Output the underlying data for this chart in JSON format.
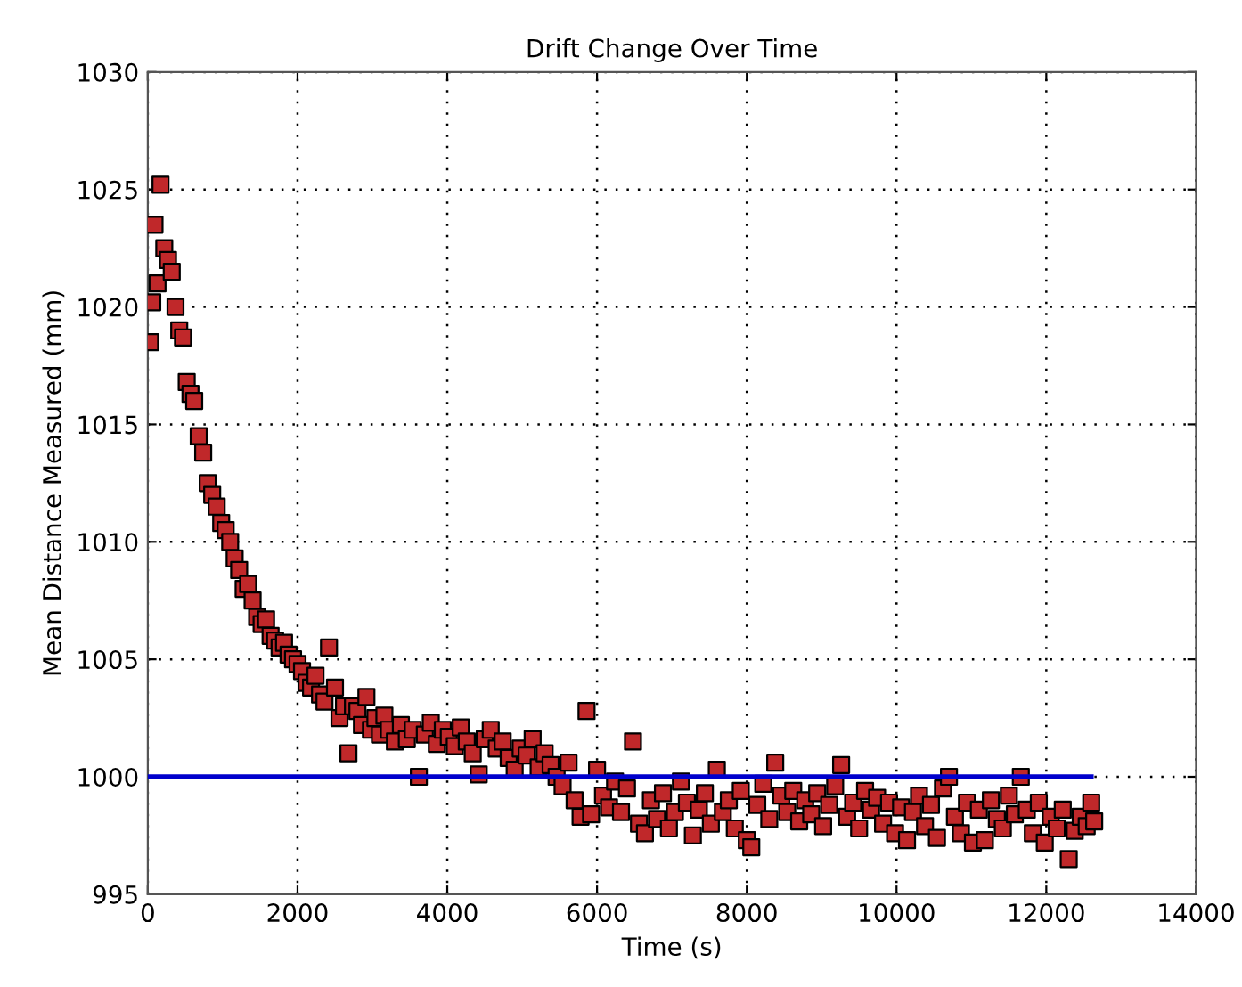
{
  "chart_data": {
    "type": "scatter",
    "title": "Drift Change Over Time",
    "xlabel": "Time (s)",
    "ylabel": "Mean Distance Measured (mm)",
    "xlim": [
      0,
      14000
    ],
    "xticks": [
      0,
      2000,
      4000,
      6000,
      8000,
      10000,
      12000,
      14000
    ],
    "ylim": [
      995,
      1030
    ],
    "yticks": [
      995,
      1000,
      1005,
      1010,
      1015,
      1020,
      1025,
      1030
    ],
    "grid": true,
    "legend": false,
    "series": [
      {
        "color": "#c0282a",
        "marker": "square",
        "x": [
          30,
          60,
          90,
          130,
          170,
          220,
          270,
          320,
          370,
          420,
          470,
          520,
          570,
          620,
          680,
          740,
          800,
          860,
          920,
          980,
          1040,
          1100,
          1160,
          1220,
          1280,
          1340,
          1400,
          1460,
          1520,
          1580,
          1640,
          1700,
          1760,
          1820,
          1880,
          1940,
          2000,
          2060,
          2120,
          2180,
          2240,
          2300,
          2360,
          2420,
          2500,
          2560,
          2620,
          2680,
          2740,
          2800,
          2860,
          2920,
          2980,
          3040,
          3100,
          3160,
          3220,
          3300,
          3380,
          3460,
          3540,
          3620,
          3700,
          3780,
          3860,
          3940,
          4020,
          4100,
          4180,
          4260,
          4340,
          4420,
          4500,
          4580,
          4660,
          4740,
          4820,
          4900,
          4980,
          5060,
          5140,
          5220,
          5300,
          5380,
          5460,
          5540,
          5620,
          5700,
          5780,
          5860,
          5920,
          6000,
          6080,
          6160,
          6240,
          6320,
          6400,
          6480,
          6560,
          6640,
          6720,
          6800,
          6880,
          6960,
          7040,
          7120,
          7200,
          7280,
          7360,
          7440,
          7520,
          7600,
          7680,
          7760,
          7840,
          7920,
          8000,
          8060,
          8140,
          8220,
          8300,
          8380,
          8460,
          8540,
          8620,
          8700,
          8780,
          8860,
          8940,
          9020,
          9100,
          9180,
          9260,
          9340,
          9420,
          9500,
          9580,
          9660,
          9740,
          9820,
          9900,
          9980,
          10060,
          10140,
          10220,
          10300,
          10380,
          10460,
          10540,
          10620,
          10700,
          10780,
          10860,
          10940,
          11020,
          11100,
          11180,
          11260,
          11340,
          11420,
          11500,
          11580,
          11660,
          11740,
          11820,
          11900,
          11980,
          12060,
          12140,
          12220,
          12300,
          12380,
          12460,
          12540,
          12600,
          12640
        ],
        "values": [
          1018.5,
          1020.2,
          1023.5,
          1021,
          1025.2,
          1022.5,
          1022,
          1021.5,
          1020,
          1019,
          1018.7,
          1016.8,
          1016.3,
          1016,
          1014.5,
          1013.8,
          1012.5,
          1012,
          1011.5,
          1010.8,
          1010.5,
          1010,
          1009.3,
          1008.8,
          1008,
          1008.2,
          1007.5,
          1006.8,
          1006.5,
          1006.7,
          1006,
          1005.8,
          1005.5,
          1005.7,
          1005.2,
          1005,
          1004.8,
          1004.5,
          1004,
          1003.8,
          1004.3,
          1003.5,
          1003.2,
          1005.5,
          1003.8,
          1002.5,
          1003,
          1001,
          1003,
          1002.8,
          1002.2,
          1003.4,
          1002,
          1002.5,
          1001.8,
          1002.6,
          1002,
          1001.5,
          1002.2,
          1001.6,
          1002,
          1000,
          1001.8,
          1002.3,
          1001.4,
          1002,
          1001.7,
          1001.3,
          1002.1,
          1001.5,
          1001,
          1000.1,
          1001.6,
          1002,
          1001.2,
          1001.5,
          1000.8,
          1000.3,
          1001.2,
          1000.9,
          1001.6,
          1000.4,
          1001,
          1000.5,
          1000,
          999.6,
          1000.6,
          999,
          998.3,
          1002.8,
          998.4,
          1000.3,
          999.2,
          998.7,
          999.8,
          998.5,
          999.5,
          1001.5,
          998,
          997.6,
          999,
          998.2,
          999.3,
          997.8,
          998.5,
          999.8,
          998.9,
          997.5,
          998.6,
          999.3,
          998,
          1000.3,
          998.5,
          999,
          997.8,
          999.4,
          997.3,
          997,
          998.8,
          999.7,
          998.2,
          1000.6,
          999.2,
          998.5,
          999.4,
          998.1,
          999,
          998.4,
          999.3,
          997.9,
          998.8,
          999.6,
          1000.5,
          998.3,
          998.9,
          997.8,
          999.4,
          998.6,
          999.1,
          998,
          998.9,
          997.6,
          998.7,
          997.3,
          998.5,
          999.2,
          997.9,
          998.8,
          997.4,
          999.5,
          1000,
          998.3,
          997.6,
          998.9,
          997.2,
          998.6,
          997.3,
          999,
          998.2,
          997.8,
          999.2,
          998.4,
          1000,
          998.6,
          997.6,
          998.9,
          997.2,
          998.3,
          997.8,
          998.6,
          996.5,
          997.7,
          998.3,
          997.9,
          998.9,
          998.1
        ]
      },
      {
        "type": "line",
        "color": "#0000cc",
        "marker": "none",
        "line_style": "solid",
        "x": [
          0,
          12600
        ],
        "values": [
          1000,
          1000
        ]
      }
    ]
  }
}
